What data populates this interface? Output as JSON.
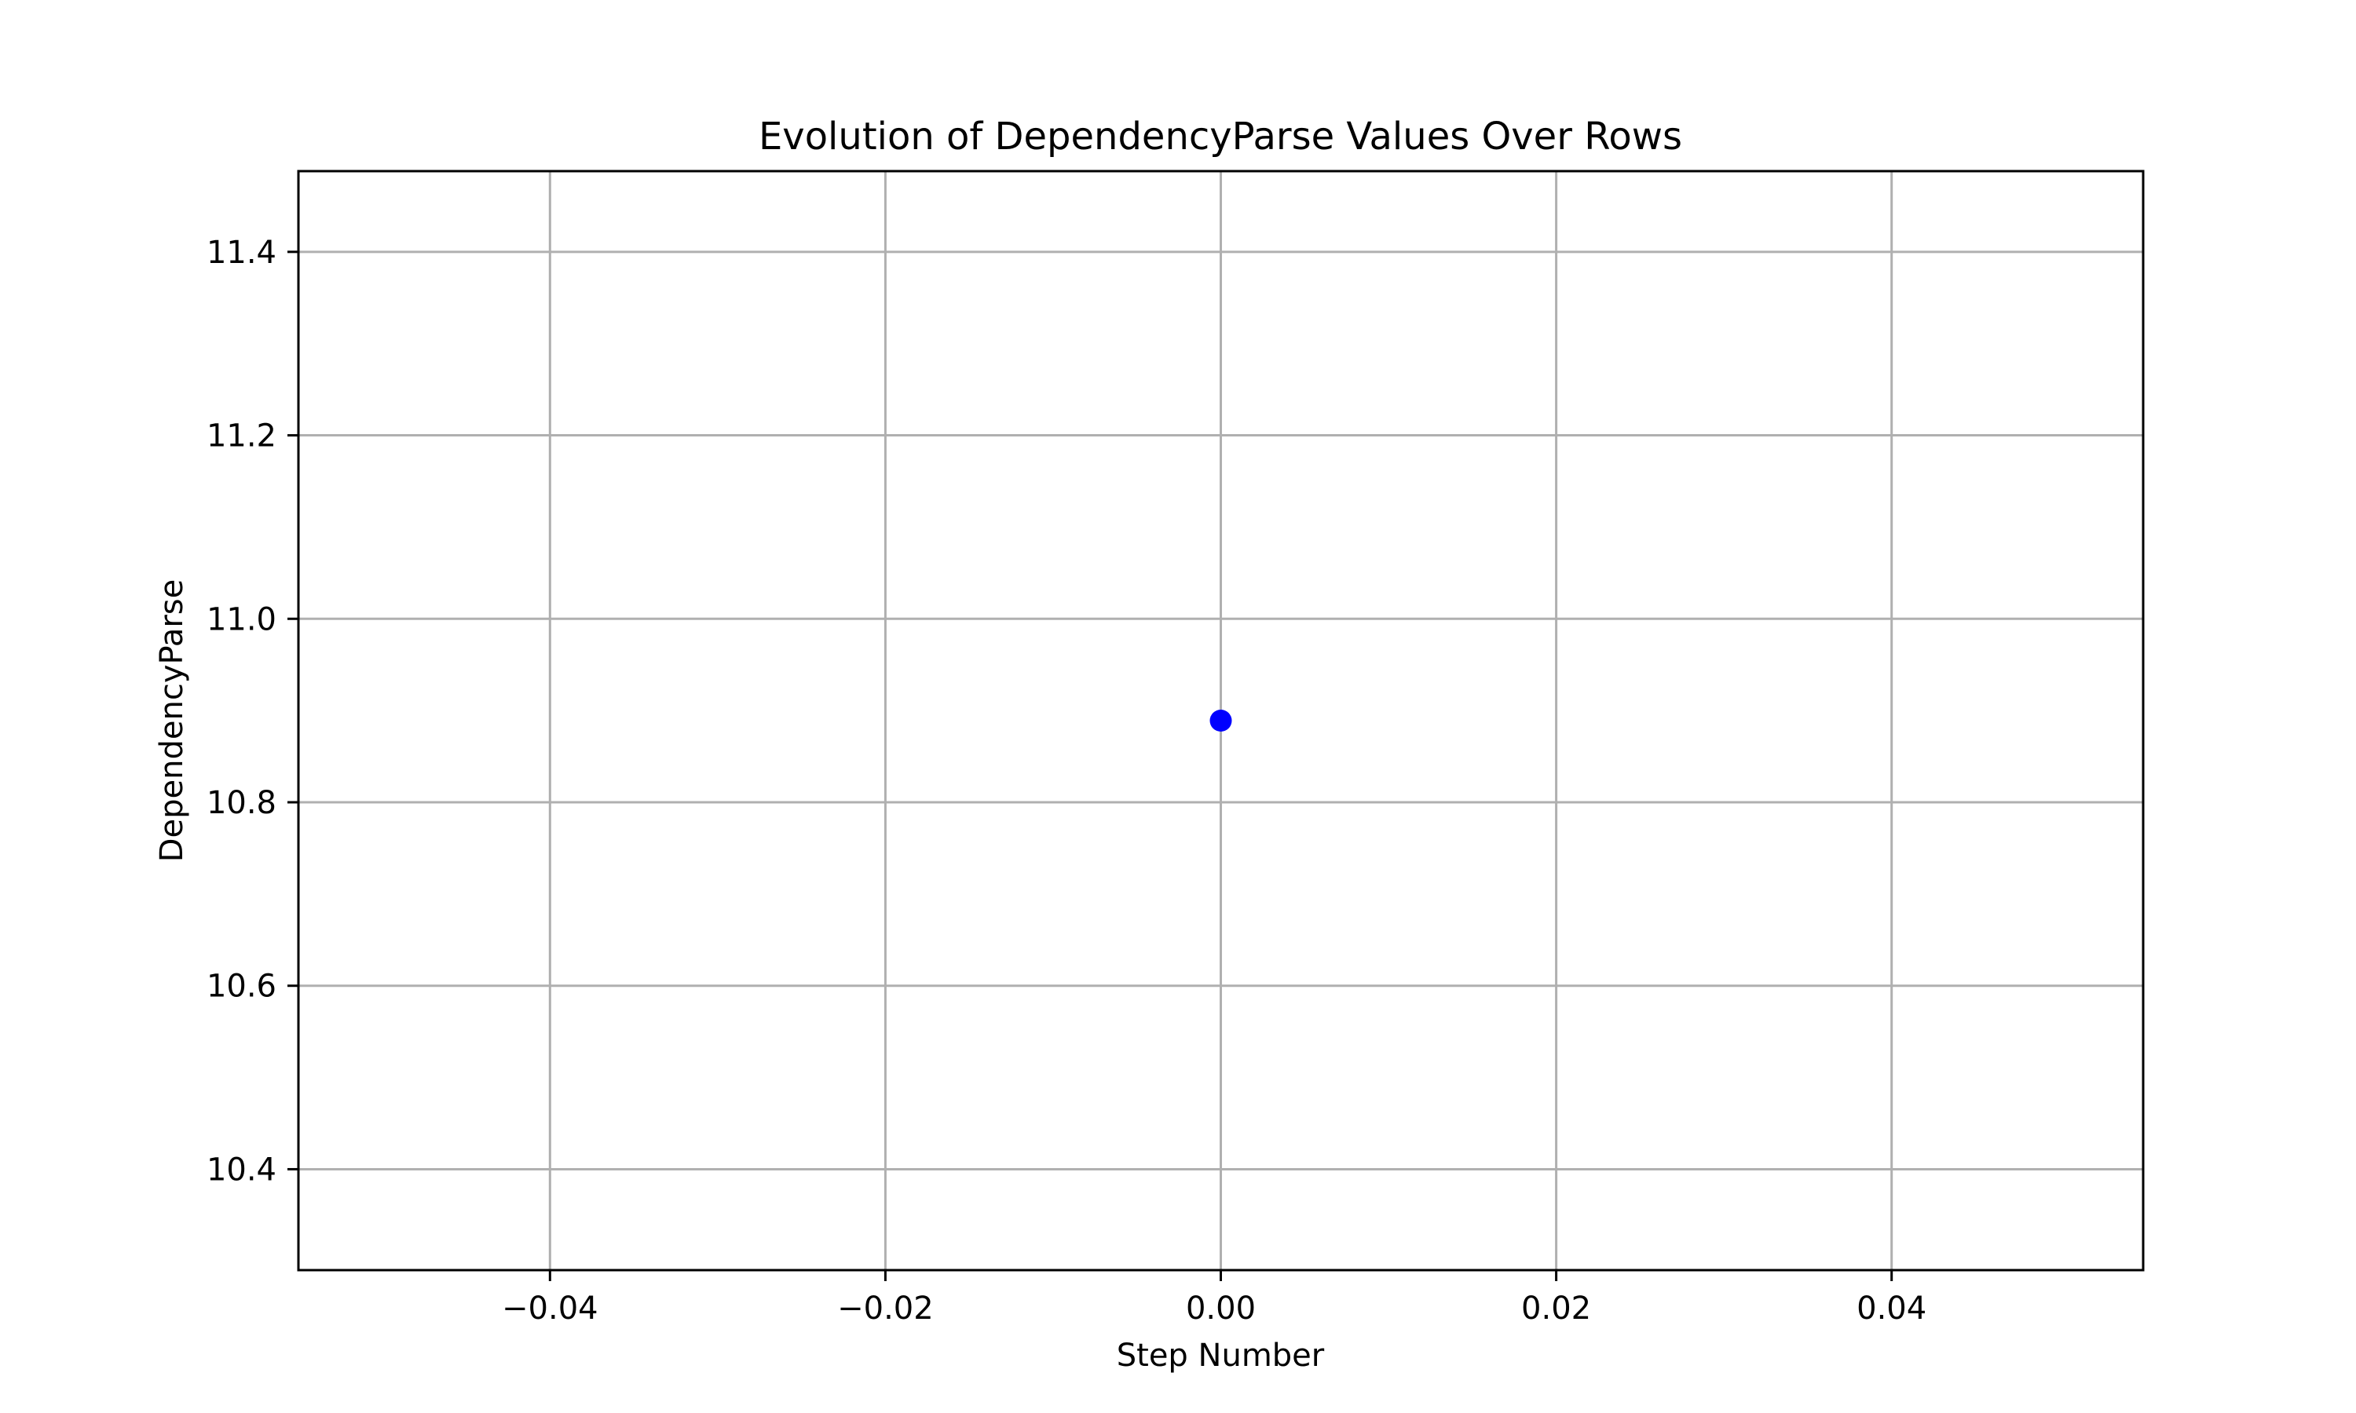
{
  "chart_data": {
    "type": "scatter",
    "title": "Evolution of DependencyParse Values Over Rows",
    "xlabel": "Step Number",
    "ylabel": "DependencyParse",
    "xlim": [
      -0.055,
      0.055
    ],
    "ylim": [
      10.29,
      11.488
    ],
    "x_ticks": [
      -0.04,
      -0.02,
      0.0,
      0.02,
      0.04
    ],
    "x_tick_labels": [
      "−0.04",
      "−0.02",
      "0.00",
      "0.02",
      "0.04"
    ],
    "y_ticks": [
      10.4,
      10.6,
      10.8,
      11.0,
      11.2,
      11.4
    ],
    "y_tick_labels": [
      "10.4",
      "10.6",
      "10.8",
      "11.0",
      "11.2",
      "11.4"
    ],
    "grid": true,
    "series": [
      {
        "color": "#0000ff",
        "points": [
          {
            "x": 0.0,
            "y": 10.889
          }
        ]
      }
    ]
  }
}
